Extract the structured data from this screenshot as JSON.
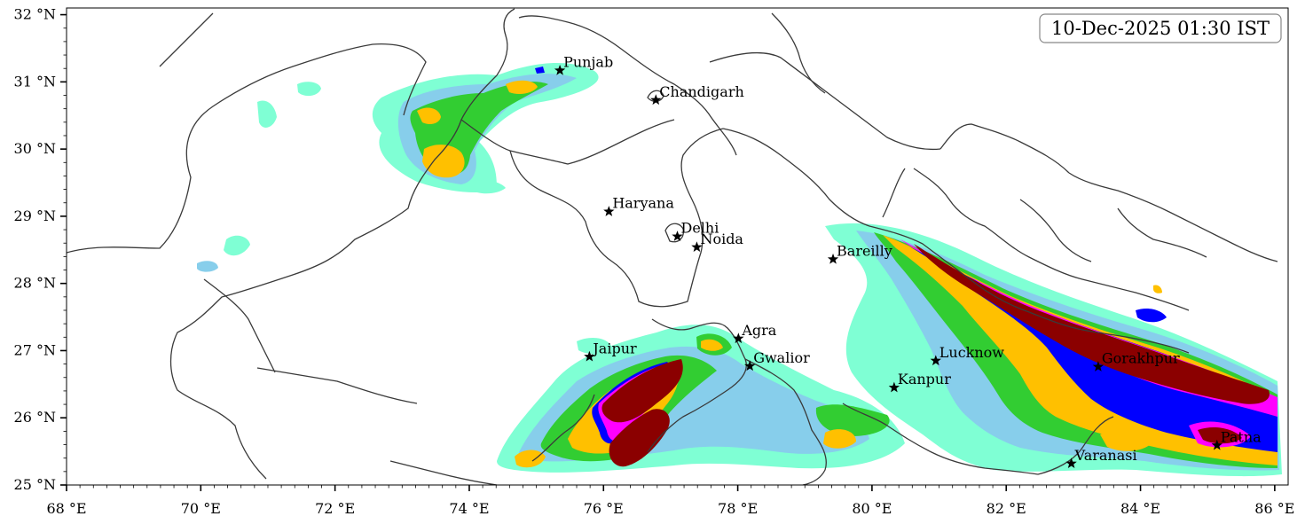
{
  "timestamp": "10-Dec-2025 01:30 IST",
  "x_ticks": [
    "68 °E",
    "70 °E",
    "72 °E",
    "74 °E",
    "76 °E",
    "78 °E",
    "80 °E",
    "82 °E",
    "84 °E",
    "86 °E"
  ],
  "y_ticks": [
    "32 °N",
    "31 °N",
    "30 °N",
    "29 °N",
    "28 °N",
    "27 °N",
    "26 °N",
    "25 °N"
  ],
  "extent": {
    "lon_min": 68,
    "lon_max": 86.2,
    "lat_min": 25,
    "lat_max": 32.1
  },
  "cities": [
    {
      "name": "Punjab",
      "lon": 75.35,
      "lat": 31.17
    },
    {
      "name": "Chandigarh",
      "lon": 76.78,
      "lat": 30.73
    },
    {
      "name": "Haryana",
      "lon": 76.08,
      "lat": 29.07
    },
    {
      "name": "Delhi",
      "lon": 77.1,
      "lat": 28.7
    },
    {
      "name": "Noida",
      "lon": 77.39,
      "lat": 28.54
    },
    {
      "name": "Bareilly",
      "lon": 79.42,
      "lat": 28.36
    },
    {
      "name": "Agra",
      "lon": 78.01,
      "lat": 27.18
    },
    {
      "name": "Jaipur",
      "lon": 75.79,
      "lat": 26.91
    },
    {
      "name": "Gwalior",
      "lon": 78.18,
      "lat": 26.77
    },
    {
      "name": "Lucknow",
      "lon": 80.95,
      "lat": 26.85
    },
    {
      "name": "Kanpur",
      "lon": 80.33,
      "lat": 26.45
    },
    {
      "name": "Gorakhpur",
      "lon": 83.37,
      "lat": 26.76
    },
    {
      "name": "Patna",
      "lon": 85.14,
      "lat": 25.59
    },
    {
      "name": "Varanasi",
      "lon": 82.97,
      "lat": 25.32
    }
  ],
  "colors": {
    "level_1": "#7fffd4",
    "level_2": "#87ceeb",
    "level_3": "#32cd32",
    "level_4": "#ffc000",
    "level_5": "#ff8c00",
    "level_6": "#0000ff",
    "level_7": "#ff00ff",
    "level_8": "#8b0000",
    "border": "#3a3a3a"
  }
}
